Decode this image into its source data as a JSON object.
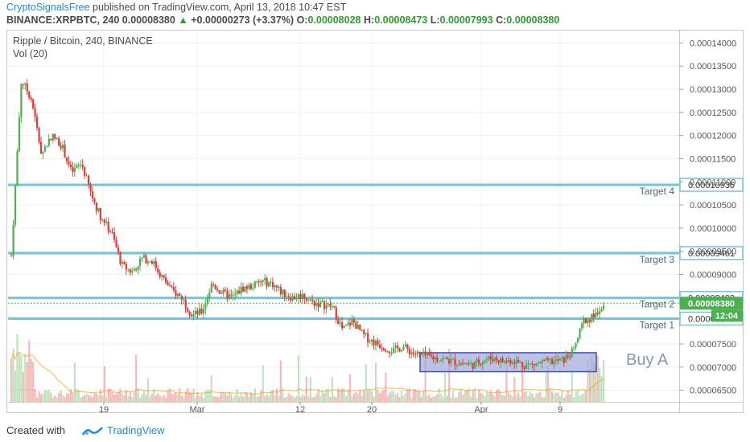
{
  "header": {
    "author": "CryptoSignalsFree",
    "published_text": " published on TradingView.com, April 13, 2018 10:47 EST",
    "symbol": "BINANCE:XRPBTC, 240",
    "last": "0.00008380",
    "change_arrow": "▲",
    "change": "+0.00000273 (+3.37%)",
    "o_label": "O:",
    "o_value": "0.00008028",
    "h_label": "H:",
    "h_value": "0.00008473",
    "l_label": "L:",
    "l_value": "0.00007993",
    "c_label": "C:",
    "c_value": "0.00008380"
  },
  "legend": {
    "title": "Ripple / Bitcoin, 240, BINANCE",
    "volume": "Vol (20)"
  },
  "footer": {
    "created_with": "Created with",
    "brand": "TradingView"
  },
  "colors": {
    "up": "#4caf50",
    "down": "#e53935",
    "target_line": "#74c3d9",
    "box_fill": "#9fa8da",
    "box_stroke": "#3f51b5",
    "price_label_green": "#4caf50",
    "axis_text": "#555555",
    "brand": "#1e88e5"
  },
  "chart_data": {
    "type": "candlestick",
    "y_axis": {
      "ticks": [
        "0.00014000",
        "0.00013500",
        "0.00013000",
        "0.00012500",
        "0.00012000",
        "0.00011500",
        "0.00011000",
        "0.00010500",
        "0.00010000",
        "0.00009500",
        "0.00009000",
        "0.00007500",
        "0.00007000",
        "0.00006500"
      ],
      "ylim": [
        6.25e-05,
        0.0001425
      ]
    },
    "x_axis": {
      "ticks": [
        "19",
        "Mar",
        "12",
        "20",
        "Apr",
        "9"
      ]
    },
    "targets": [
      {
        "name": "Target 4",
        "price": "0.00010936"
      },
      {
        "name": "Target 3",
        "price": "0.00009461"
      },
      {
        "name": "Target 2",
        "price": "0.00008493"
      },
      {
        "name": "Target 1",
        "price": "0.00008046"
      }
    ],
    "current_price": "0.00008380",
    "countdown": "12:04",
    "annotation": "Buy A",
    "buy_zone": {
      "low": 6.9e-05,
      "high": 7.31e-05
    },
    "price_path": [
      {
        "d": "Feb 13",
        "p": 9.4e-05
      },
      {
        "d": "Feb 14",
        "p": 0.000132
      },
      {
        "d": "Feb 15",
        "p": 0.000128
      },
      {
        "d": "Feb 16",
        "p": 0.000116
      },
      {
        "d": "Feb 17",
        "p": 0.00012
      },
      {
        "d": "Feb 18",
        "p": 0.000118
      },
      {
        "d": "Feb 19",
        "p": 0.000112
      },
      {
        "d": "Feb 20",
        "p": 0.000114
      },
      {
        "d": "Feb 21",
        "p": 0.000107
      },
      {
        "d": "Feb 22",
        "p": 0.000102
      },
      {
        "d": "Feb 23",
        "p": 9.9e-05
      },
      {
        "d": "Feb 24",
        "p": 9.2e-05
      },
      {
        "d": "Feb 25",
        "p": 9.05e-05
      },
      {
        "d": "Feb 26",
        "p": 9.35e-05
      },
      {
        "d": "Feb 27",
        "p": 9.3e-05
      },
      {
        "d": "Feb 28",
        "p": 8.95e-05
      },
      {
        "d": "Mar 1",
        "p": 8.65e-05
      },
      {
        "d": "Mar 2",
        "p": 8.5e-05
      },
      {
        "d": "Mar 3",
        "p": 8.12e-05
      },
      {
        "d": "Mar 4",
        "p": 8.2e-05
      },
      {
        "d": "Mar 5",
        "p": 8.8e-05
      },
      {
        "d": "Mar 6",
        "p": 8.6e-05
      },
      {
        "d": "Mar 7",
        "p": 8.5e-05
      },
      {
        "d": "Mar 8",
        "p": 8.7e-05
      },
      {
        "d": "Mar 9",
        "p": 8.75e-05
      },
      {
        "d": "Mar 10",
        "p": 8.85e-05
      },
      {
        "d": "Mar 11",
        "p": 8.8e-05
      },
      {
        "d": "Mar 12",
        "p": 8.6e-05
      },
      {
        "d": "Mar 13",
        "p": 8.5e-05
      },
      {
        "d": "Mar 14",
        "p": 8.55e-05
      },
      {
        "d": "Mar 15",
        "p": 8.4e-05
      },
      {
        "d": "Mar 16",
        "p": 8.35e-05
      },
      {
        "d": "Mar 17",
        "p": 8.3e-05
      },
      {
        "d": "Mar 18",
        "p": 7.8e-05
      },
      {
        "d": "Mar 19",
        "p": 8e-05
      },
      {
        "d": "Mar 20",
        "p": 7.7e-05
      },
      {
        "d": "Mar 21",
        "p": 7.55e-05
      },
      {
        "d": "Mar 22",
        "p": 7.45e-05
      },
      {
        "d": "Mar 23",
        "p": 7.35e-05
      },
      {
        "d": "Mar 24",
        "p": 7.45e-05
      },
      {
        "d": "Mar 25",
        "p": 7.3e-05
      },
      {
        "d": "Mar 26",
        "p": 7.25e-05
      },
      {
        "d": "Mar 27",
        "p": 7.2e-05
      },
      {
        "d": "Mar 28",
        "p": 7.18e-05
      },
      {
        "d": "Mar 29",
        "p": 7.12e-05
      },
      {
        "d": "Mar 30",
        "p": 7.08e-05
      },
      {
        "d": "Mar 31",
        "p": 7.05e-05
      },
      {
        "d": "Apr 1",
        "p": 7.15e-05
      },
      {
        "d": "Apr 2",
        "p": 7.2e-05
      },
      {
        "d": "Apr 3",
        "p": 7.12e-05
      },
      {
        "d": "Apr 4",
        "p": 7.15e-05
      },
      {
        "d": "Apr 5",
        "p": 7.05e-05
      },
      {
        "d": "Apr 6",
        "p": 7.05e-05
      },
      {
        "d": "Apr 7",
        "p": 7.1e-05
      },
      {
        "d": "Apr 8",
        "p": 7.12e-05
      },
      {
        "d": "Apr 9",
        "p": 7.15e-05
      },
      {
        "d": "Apr 10",
        "p": 7.35e-05
      },
      {
        "d": "Apr 11",
        "p": 8e-05
      },
      {
        "d": "Apr 12",
        "p": 8.1e-05
      },
      {
        "d": "Apr 13",
        "p": 8.38e-05
      }
    ]
  }
}
